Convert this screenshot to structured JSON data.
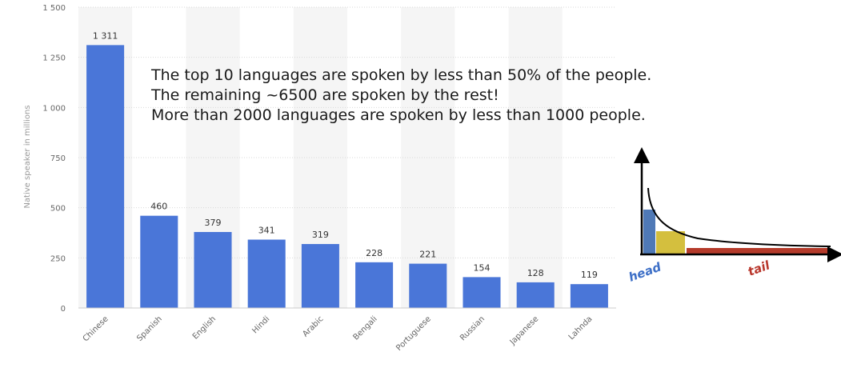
{
  "chart_data": {
    "type": "bar",
    "categories": [
      "Chinese",
      "Spanish",
      "English",
      "Hindi",
      "Arabic",
      "Bengali",
      "Portuguese",
      "Russian",
      "Japanese",
      "Lahnda"
    ],
    "values": [
      1311,
      460,
      379,
      341,
      319,
      228,
      221,
      154,
      128,
      119
    ],
    "value_labels": [
      "1 311",
      "460",
      "379",
      "341",
      "319",
      "228",
      "221",
      "154",
      "128",
      "119"
    ],
    "ylabel": "Native speaker in millions",
    "ylim": [
      0,
      1500
    ],
    "yticks": [
      0,
      250,
      500,
      750,
      1000,
      1250,
      1500
    ],
    "ytick_labels": [
      "0",
      "250",
      "500",
      "750",
      "1 000",
      "1 250",
      "1 500"
    ],
    "grid": true,
    "bar_color": "#4a76d8"
  },
  "annotation": {
    "lines": [
      "The top 10 languages are spoken by less than 50% of the people.",
      "The remaining ~6500 are spoken by the rest!",
      "More than 2000 languages are spoken by less than 1000 people."
    ]
  },
  "long_tail_diagram": {
    "head_label": "head",
    "tail_label": "tail",
    "head_color": "#3d6fc7",
    "tail_color": "#b8352a",
    "bar_colors": [
      "#4f79b6",
      "#d4bf3e",
      "#b43a2a"
    ]
  }
}
